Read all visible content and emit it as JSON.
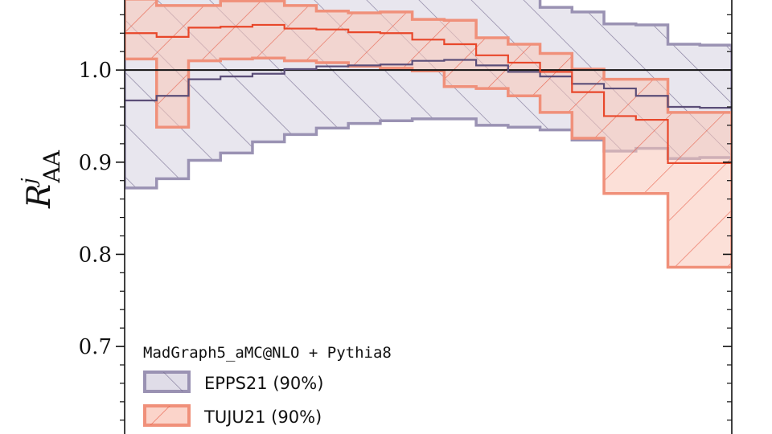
{
  "chart_data": {
    "type": "area",
    "ylabel": {
      "base": "R",
      "sup": "j",
      "sub": "AA"
    },
    "ylim": [
      0.605,
      1.076
    ],
    "yticks": [
      0.7,
      0.8,
      0.9,
      1.0
    ],
    "ytick_labels": [
      "0.7",
      "0.8",
      "0.9",
      "1.0"
    ],
    "reference_line": 1.0,
    "grid": false,
    "legend_position": "bottom-left",
    "legend_title": "MadGraph5_aMC@NLO + Pythia8",
    "bin_edges": [
      0,
      1,
      2,
      3,
      4,
      5,
      6,
      7,
      8,
      9,
      10,
      11,
      12,
      13,
      14,
      15,
      16,
      17,
      18,
      19
    ],
    "series": [
      {
        "name": "EPPS21 (90%)",
        "color": "#5b4e78",
        "fill": "#d6d2e0",
        "central": [
          0.967,
          0.972,
          0.99,
          0.993,
          0.996,
          1.001,
          1.004,
          1.005,
          1.006,
          1.01,
          1.011,
          1.005,
          0.998,
          0.993,
          0.985,
          0.98,
          0.972,
          0.96,
          0.959
        ],
        "lower": [
          0.872,
          0.882,
          0.902,
          0.91,
          0.922,
          0.93,
          0.937,
          0.942,
          0.945,
          0.947,
          0.947,
          0.94,
          0.938,
          0.935,
          0.924,
          0.912,
          0.915,
          0.904,
          0.905
        ],
        "upper": [
          1.08,
          1.08,
          1.08,
          1.08,
          1.08,
          1.08,
          1.08,
          1.08,
          1.08,
          1.08,
          1.08,
          1.08,
          1.08,
          1.068,
          1.063,
          1.05,
          1.049,
          1.028,
          1.027
        ]
      },
      {
        "name": "TUJU21 (90%)",
        "color": "#e8472a",
        "fill": "#f9c6b8",
        "central": [
          1.04,
          1.036,
          1.046,
          1.047,
          1.049,
          1.045,
          1.044,
          1.041,
          1.04,
          1.033,
          1.028,
          1.016,
          1.008,
          0.998,
          0.976,
          0.95,
          0.946,
          0.899,
          0.899
        ],
        "lower": [
          1.012,
          0.938,
          1.01,
          1.012,
          1.013,
          1.01,
          1.008,
          1.004,
          1.002,
          0.999,
          0.982,
          0.98,
          0.972,
          0.954,
          0.926,
          0.866,
          0.866,
          0.786,
          0.786
        ],
        "upper": [
          1.077,
          1.07,
          1.07,
          1.075,
          1.075,
          1.07,
          1.064,
          1.062,
          1.063,
          1.055,
          1.054,
          1.035,
          1.028,
          1.018,
          1.001,
          0.99,
          0.99,
          0.954,
          0.954
        ]
      }
    ]
  }
}
